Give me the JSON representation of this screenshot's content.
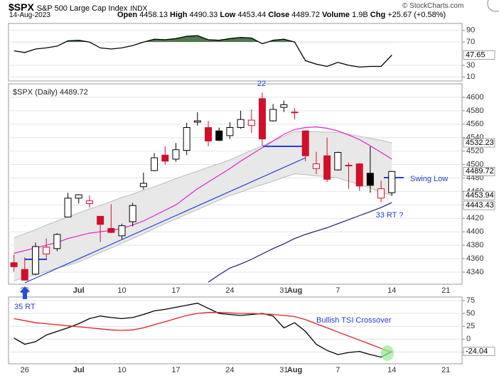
{
  "header": {
    "symbol": "$SPX",
    "name": "S&P 500 Large Cap Index",
    "exchange": "INDX",
    "date": "14-Aug-2023",
    "quote": [
      {
        "label": "Open",
        "value": "4458.13"
      },
      {
        "label": "High",
        "value": "4490.33"
      },
      {
        "label": "Low",
        "value": "4453.44"
      },
      {
        "label": "Close",
        "value": "4489.72"
      },
      {
        "label": "Volume",
        "value": "1.9B"
      },
      {
        "label": "Chg",
        "value": "+25.67 (+0.58%)"
      }
    ],
    "credit": "© StockCharts.com"
  },
  "chart_data": [
    {
      "type": "line",
      "ylim": [
        3,
        102
      ],
      "yticks": [
        10,
        30,
        70,
        90
      ],
      "fill_above": 70,
      "fill_color": "#4e7a4e",
      "series": [
        {
          "color": "#000000",
          "values": [
            55,
            52,
            58,
            60,
            63,
            72,
            73,
            70,
            60,
            58,
            60,
            64,
            70,
            75,
            74,
            76,
            80,
            81,
            74,
            73,
            76,
            78,
            77,
            67,
            73,
            75,
            70,
            38,
            32,
            28,
            35,
            30,
            27,
            28,
            28,
            47.65,
            null,
            null,
            null,
            null,
            null,
            null
          ]
        }
      ]
    },
    {
      "type": "candlestick",
      "title": "$SPX (Daily) 4489.72",
      "categories": [
        null,
        "26",
        null,
        null,
        null,
        null,
        "Jul",
        null,
        null,
        null,
        "10",
        null,
        null,
        null,
        null,
        "17",
        null,
        null,
        null,
        null,
        "24",
        null,
        null,
        null,
        null,
        "31",
        "Aug",
        null,
        null,
        null,
        "7",
        null,
        null,
        null,
        null,
        "14",
        null,
        null,
        null,
        null,
        "21",
        null
      ],
      "open": [
        4354,
        4344,
        4337,
        4367,
        4375,
        4422,
        4450,
        4442,
        4423,
        4405,
        4394,
        4415,
        4467,
        4491,
        4514,
        4508,
        4521,
        4563,
        4555,
        4550,
        4543,
        4555,
        4558,
        4598,
        4565,
        4585,
        4578,
        4550,
        4494,
        4513,
        4492,
        4498,
        4501,
        4487,
        4450,
        4458.13,
        null,
        null,
        null,
        null,
        null,
        null
      ],
      "high": [
        4366,
        4362,
        4384,
        4390,
        4398,
        4458,
        4456,
        4454,
        4423,
        4441,
        4412,
        4443,
        4488,
        4517,
        4527,
        4532,
        4562,
        4578,
        4565,
        4555,
        4563,
        4580,
        4582,
        4607,
        4590,
        4595,
        4584,
        4551,
        4519,
        4540,
        4519,
        4503,
        4502,
        4527,
        4476,
        4490.33,
        null,
        null,
        null,
        null,
        null,
        null
      ],
      "low": [
        4341,
        4328,
        4335,
        4360,
        4371,
        4422,
        4442,
        4436,
        4385,
        4398,
        4389,
        4408,
        4463,
        4490,
        4500,
        4504,
        4514,
        4558,
        4527,
        4535,
        4538,
        4553,
        4547,
        4528,
        4564,
        4578,
        4567,
        4505,
        4486,
        4474,
        4491,
        4464,
        4461,
        4458,
        4444,
        4453.44,
        null,
        null,
        null,
        null,
        null,
        null
      ],
      "close": [
        4348,
        4328,
        4378,
        4377,
        4396,
        4450,
        4455,
        4446,
        4411,
        4399,
        4409,
        4439,
        4472,
        4510,
        4505,
        4522,
        4555,
        4565,
        4535,
        4536,
        4555,
        4567,
        4566,
        4538,
        4582,
        4589,
        4577,
        4513,
        4501,
        4478,
        4518,
        4499,
        4468,
        4469,
        4464,
        4489.72,
        null,
        null,
        null,
        null,
        null,
        null
      ],
      "up_color": "#000000",
      "down_color": "#d0102a",
      "ylim": [
        4322,
        4620
      ],
      "yticks": [
        4340,
        4360,
        4380,
        4400,
        4420,
        4440,
        4460,
        4480,
        4500,
        4520,
        4540,
        4560,
        4580,
        4600
      ],
      "band": {
        "color": "#e8e8e8",
        "line_color": "#bbbbbb",
        "upper": [
          4391,
          4397,
          4403,
          4410,
          4416,
          4422,
          4428,
          4434,
          4439,
          4445,
          4451,
          4456,
          4462,
          4467,
          4473,
          4479,
          4485,
          4490,
          4496,
          4501,
          4507,
          4514,
          4521,
          4528,
          4535,
          4542,
          4549,
          4549,
          4549,
          4548,
          4548,
          4545,
          4542,
          4539,
          4536,
          4532.23,
          null,
          null,
          null,
          null,
          null,
          null
        ],
        "lower": [
          4327,
          4332,
          4336,
          4341,
          4346,
          4350,
          4355,
          4362,
          4369,
          4376,
          4383,
          4390,
          4397,
          4405,
          4412,
          4419,
          4426,
          4433,
          4440,
          4447,
          4454,
          4459,
          4465,
          4470,
          4475,
          4481,
          4486,
          4485,
          4483,
          4482,
          4480,
          4475,
          4470,
          4465,
          4459,
          4453.94,
          null,
          null,
          null,
          null,
          null,
          null
        ]
      },
      "series": [
        {
          "color": "#e020d8",
          "values": [
            4368,
            4372,
            4376,
            4380,
            4384,
            4390,
            4394,
            4398,
            4400,
            4402,
            4405,
            4410,
            4416,
            4424,
            4432,
            4440,
            4452,
            4464,
            4474,
            4484,
            4494,
            4505,
            4515,
            4525,
            4535,
            4545,
            4552,
            4555,
            4556,
            4554,
            4550,
            4544,
            4537,
            4528,
            4518,
            4508,
            null,
            null,
            null,
            null,
            null,
            null
          ]
        },
        {
          "color": "#1c1c78",
          "values": [
            null,
            null,
            null,
            null,
            null,
            null,
            null,
            null,
            null,
            null,
            null,
            null,
            null,
            null,
            null,
            null,
            null,
            null,
            4325,
            4336,
            4346,
            4352,
            4359,
            4367,
            4375,
            4382,
            4390,
            4396,
            4401,
            4406,
            4412,
            4418,
            4424,
            4430,
            4436,
            4443.43,
            null,
            null,
            null,
            null,
            null,
            null
          ]
        }
      ],
      "annotations": [
        "22",
        "Swing Low",
        "33 RT ?"
      ]
    },
    {
      "type": "line",
      "ylim": [
        -48,
        82
      ],
      "yticks": [
        -25,
        0,
        25,
        50,
        75
      ],
      "series": [
        {
          "color": "#000000",
          "values": [
            2,
            -10,
            -5,
            8,
            15,
            22,
            30,
            40,
            45,
            42,
            40,
            42,
            48,
            55,
            58,
            62,
            66,
            70,
            60,
            50,
            48,
            46,
            48,
            50,
            45,
            22,
            32,
            15,
            -10,
            -22,
            -30,
            -26,
            -24,
            -30,
            -35,
            -24.04,
            null,
            null,
            null,
            null,
            null,
            null
          ]
        },
        {
          "color": "#e02020",
          "values": [
            40,
            36,
            32,
            30,
            28,
            26,
            24,
            22,
            20,
            18,
            17,
            18,
            22,
            28,
            34,
            40,
            46,
            50,
            52,
            52,
            51,
            50,
            50,
            49,
            48,
            46,
            44,
            38,
            30,
            22,
            14,
            6,
            -2,
            -10,
            -18,
            -26,
            null,
            null,
            null,
            null,
            null,
            null
          ]
        }
      ],
      "annotations": [
        "35 RT",
        "Bullish TSI Crossover"
      ]
    }
  ]
}
